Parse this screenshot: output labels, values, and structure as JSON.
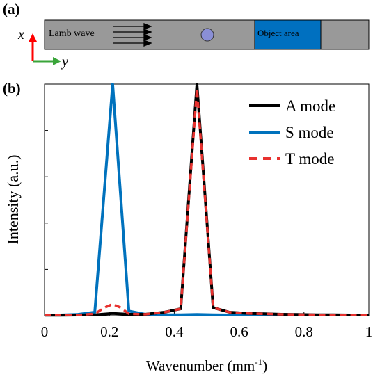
{
  "panel_a": {
    "label": "(a)",
    "axis_x": "x",
    "axis_y": "y",
    "wave_label": "Lamb wave",
    "object_label": "Object area",
    "colors": {
      "plate": "#999999",
      "object": "#0070c0",
      "particle": "#8a8fd6",
      "arrow_x": "#ff0000",
      "arrow_y": "#3aa53a"
    }
  },
  "panel_b": {
    "label": "(b)"
  },
  "chart_data": {
    "type": "line",
    "xlabel": "Wavenumber (mm",
    "xlabel_sup": "-1",
    "xlabel_end": ")",
    "ylabel": "Intensity (a.u.)",
    "xlim": [
      0,
      1
    ],
    "ylim": [
      0,
      1
    ],
    "xticks": [
      0,
      0.2,
      0.4,
      0.6,
      0.8,
      1
    ],
    "xtick_labels": [
      "0",
      "0.2",
      "0.4",
      "0.6",
      "0.8",
      "1"
    ],
    "yticks": [
      0,
      0.2,
      0.4,
      0.6,
      0.8,
      1
    ],
    "grid": false,
    "legend_position": "top-right",
    "series": [
      {
        "name": "S mode",
        "color": "#0072bd",
        "style": "solid",
        "x": [
          0,
          0.05,
          0.1,
          0.155,
          0.21,
          0.26,
          0.31,
          0.37,
          0.42,
          0.47,
          0.52,
          0.57,
          0.63,
          0.68,
          0.73,
          0.78,
          0.84,
          0.89,
          0.94,
          1
        ],
        "y": [
          0.003,
          0.003,
          0.005,
          0.015,
          1.0,
          0.02,
          0.006,
          0.004,
          0.004,
          0.005,
          0.004,
          0.003,
          0.003,
          0.003,
          0.003,
          0.003,
          0.003,
          0.003,
          0.003,
          0.003
        ]
      },
      {
        "name": "A mode",
        "color": "#000000",
        "style": "solid",
        "x": [
          0,
          0.05,
          0.1,
          0.155,
          0.21,
          0.26,
          0.31,
          0.37,
          0.42,
          0.47,
          0.52,
          0.57,
          0.63,
          0.68,
          0.73,
          0.78,
          0.84,
          0.89,
          0.94,
          1
        ],
        "y": [
          0.002,
          0.002,
          0.003,
          0.004,
          0.01,
          0.006,
          0.006,
          0.015,
          0.03,
          1.0,
          0.035,
          0.015,
          0.01,
          0.008,
          0.006,
          0.005,
          0.004,
          0.004,
          0.003,
          0.003
        ]
      },
      {
        "name": "T mode",
        "color": "#e8322f",
        "style": "dashed",
        "x": [
          0,
          0.05,
          0.1,
          0.155,
          0.185,
          0.21,
          0.235,
          0.26,
          0.31,
          0.37,
          0.42,
          0.47,
          0.52,
          0.57,
          0.63,
          0.68,
          0.73,
          0.78,
          0.84,
          0.89,
          0.94,
          1
        ],
        "y": [
          0.002,
          0.002,
          0.003,
          0.008,
          0.035,
          0.05,
          0.035,
          0.008,
          0.006,
          0.015,
          0.03,
          0.98,
          0.035,
          0.015,
          0.01,
          0.008,
          0.006,
          0.005,
          0.004,
          0.004,
          0.003,
          0.003
        ]
      }
    ],
    "legend_order": [
      "A mode",
      "S mode",
      "T mode"
    ]
  }
}
